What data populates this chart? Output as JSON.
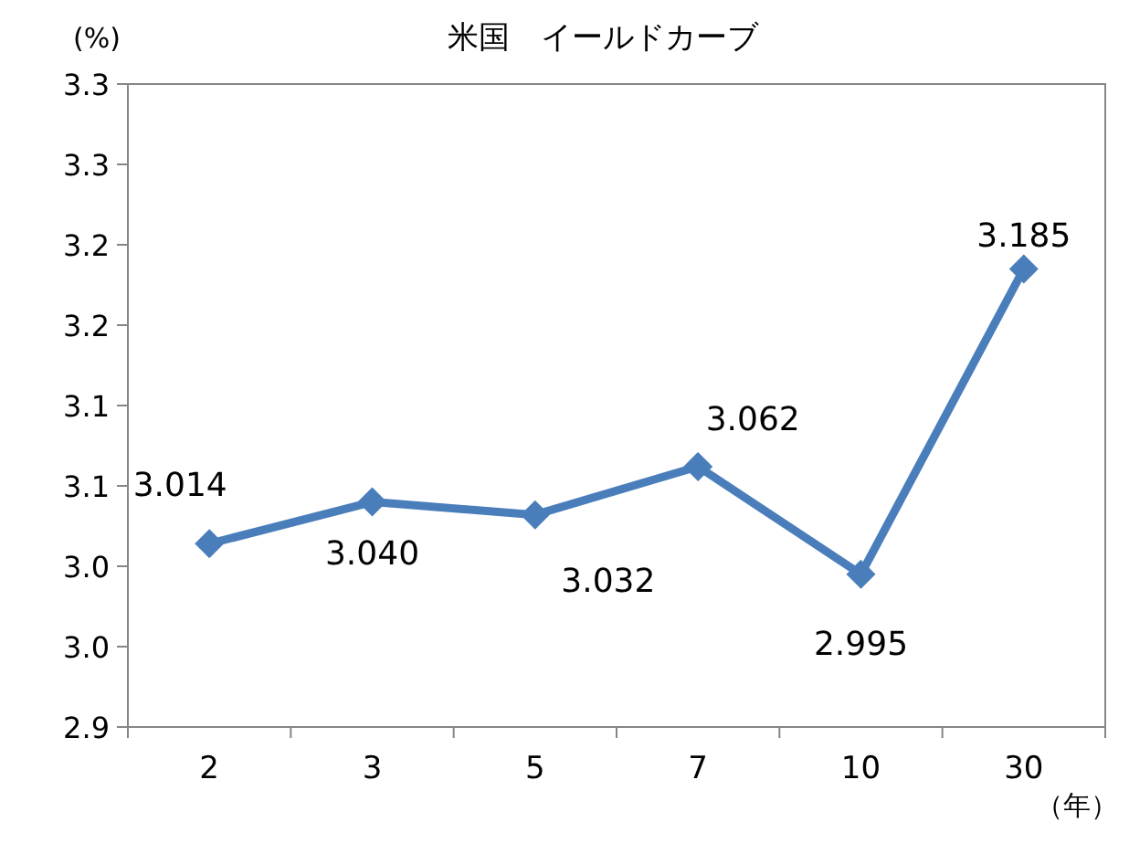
{
  "chart_data": {
    "type": "line",
    "title": "米国　イールドカーブ",
    "ylabel": "(%)",
    "xlabel": "（年）",
    "categories": [
      "2",
      "3",
      "5",
      "7",
      "10",
      "30"
    ],
    "series": [
      {
        "color": "#4a7ebb",
        "values": [
          3.014,
          3.04,
          3.032,
          3.062,
          2.995,
          3.185
        ],
        "value_labels": [
          "3.014",
          "3.040",
          "3.032",
          "3.062",
          "2.995",
          "3.185"
        ]
      }
    ],
    "ylim": [
      2.9,
      3.3
    ],
    "yticks": [
      {
        "value": 2.9,
        "label": "2.9"
      },
      {
        "value": 2.95,
        "label": "3.0"
      },
      {
        "value": 3.0,
        "label": "3.0"
      },
      {
        "value": 3.05,
        "label": "3.1"
      },
      {
        "value": 3.1,
        "label": "3.1"
      },
      {
        "value": 3.15,
        "label": "3.2"
      },
      {
        "value": 3.2,
        "label": "3.2"
      },
      {
        "value": 3.25,
        "label": "3.3"
      },
      {
        "value": 3.3,
        "label": "3.3"
      }
    ],
    "marker": "diamond",
    "line_style": "solid",
    "grid": false
  }
}
